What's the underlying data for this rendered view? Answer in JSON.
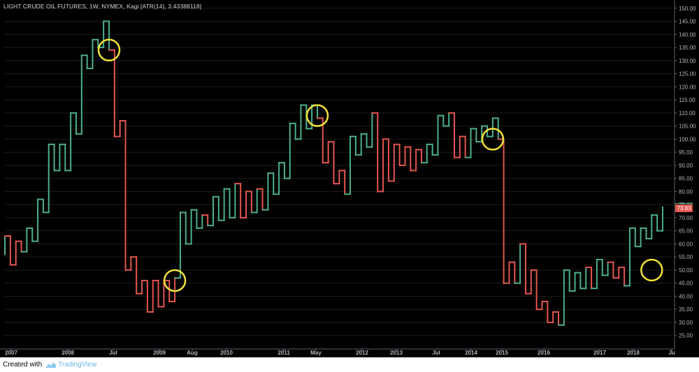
{
  "title": "LIGHT CRUDE OIL FUTURES, 1W, NYMEX, Kagi [ATR(14), 3.43388118]",
  "footer": {
    "created_with": "Created with",
    "brand": "TradingView"
  },
  "last_price_label": "73.83",
  "colors": {
    "up": "#4caf8a",
    "down": "#e3564f",
    "circle": "#f2e23a",
    "background": "#000000",
    "grid": "#1c1c1c"
  },
  "chart_data": {
    "type": "line",
    "style": "kagi",
    "title": "LIGHT CRUDE OIL FUTURES, 1W, NYMEX, Kagi [ATR(14), 3.43388118]",
    "y_range": [
      22,
      151
    ],
    "y_ticks": [
      "25.00",
      "30.00",
      "35.00",
      "40.00",
      "45.00",
      "50.00",
      "55.00",
      "60.00",
      "65.00",
      "70.00",
      "75.00",
      "80.00",
      "85.00",
      "90.00",
      "95.00",
      "100.00",
      "105.00",
      "110.00",
      "115.00",
      "120.00",
      "125.00",
      "130.00",
      "135.00",
      "140.00",
      "145.00",
      "150.00"
    ],
    "x_ticks": [
      "2007",
      "2008",
      "Jul",
      "2009",
      "Aug",
      "2010",
      "2011",
      "May",
      "2012",
      "2013",
      "Jul",
      "2014",
      "2015",
      "2016",
      "2017",
      "2018",
      "Ju"
    ],
    "last_price": 73.83,
    "series": [
      {
        "segments": [
          {
            "y0": 56,
            "y1": 63,
            "trend": "up"
          },
          {
            "y0": 63,
            "y1": 52,
            "trend": "down"
          },
          {
            "y0": 52,
            "y1": 61,
            "trend": "down"
          },
          {
            "y0": 61,
            "y1": 57,
            "trend": "down"
          },
          {
            "y0": 57,
            "y1": 66,
            "trend": "up"
          },
          {
            "y0": 66,
            "y1": 61,
            "trend": "up"
          },
          {
            "y0": 61,
            "y1": 77,
            "trend": "up"
          },
          {
            "y0": 77,
            "y1": 72,
            "trend": "up"
          },
          {
            "y0": 72,
            "y1": 98,
            "trend": "up"
          },
          {
            "y0": 98,
            "y1": 88,
            "trend": "up"
          },
          {
            "y0": 88,
            "y1": 98,
            "trend": "up"
          },
          {
            "y0": 98,
            "y1": 88,
            "trend": "up"
          },
          {
            "y0": 88,
            "y1": 110,
            "trend": "up"
          },
          {
            "y0": 110,
            "y1": 102,
            "trend": "up"
          },
          {
            "y0": 102,
            "y1": 132,
            "trend": "up"
          },
          {
            "y0": 132,
            "y1": 127,
            "trend": "up"
          },
          {
            "y0": 127,
            "y1": 138,
            "trend": "up"
          },
          {
            "y0": 138,
            "y1": 135,
            "trend": "up"
          },
          {
            "y0": 135,
            "y1": 145,
            "trend": "up"
          },
          {
            "y0": 145,
            "y1": 134,
            "trend": "up"
          },
          {
            "y0": 134,
            "y1": 101,
            "trend": "down"
          },
          {
            "y0": 101,
            "y1": 107,
            "trend": "down"
          },
          {
            "y0": 107,
            "y1": 50,
            "trend": "down"
          },
          {
            "y0": 50,
            "y1": 55,
            "trend": "down"
          },
          {
            "y0": 55,
            "y1": 41,
            "trend": "down"
          },
          {
            "y0": 41,
            "y1": 46,
            "trend": "down"
          },
          {
            "y0": 46,
            "y1": 34,
            "trend": "down"
          },
          {
            "y0": 34,
            "y1": 46,
            "trend": "down"
          },
          {
            "y0": 46,
            "y1": 36,
            "trend": "down"
          },
          {
            "y0": 36,
            "y1": 46,
            "trend": "down"
          },
          {
            "y0": 46,
            "y1": 38,
            "trend": "down"
          },
          {
            "y0": 38,
            "y1": 47,
            "trend": "down"
          },
          {
            "y0": 47,
            "y1": 72,
            "trend": "up"
          },
          {
            "y0": 72,
            "y1": 60,
            "trend": "up"
          },
          {
            "y0": 60,
            "y1": 73,
            "trend": "up"
          },
          {
            "y0": 73,
            "y1": 66,
            "trend": "up"
          },
          {
            "y0": 66,
            "y1": 71,
            "trend": "up"
          },
          {
            "y0": 71,
            "y1": 67,
            "trend": "down"
          },
          {
            "y0": 67,
            "y1": 78,
            "trend": "up"
          },
          {
            "y0": 78,
            "y1": 69,
            "trend": "up"
          },
          {
            "y0": 69,
            "y1": 81,
            "trend": "up"
          },
          {
            "y0": 81,
            "y1": 70,
            "trend": "up"
          },
          {
            "y0": 70,
            "y1": 83,
            "trend": "up"
          },
          {
            "y0": 83,
            "y1": 70,
            "trend": "down"
          },
          {
            "y0": 70,
            "y1": 80,
            "trend": "down"
          },
          {
            "y0": 80,
            "y1": 72,
            "trend": "down"
          },
          {
            "y0": 72,
            "y1": 81,
            "trend": "up"
          },
          {
            "y0": 81,
            "y1": 73,
            "trend": "down"
          },
          {
            "y0": 73,
            "y1": 87,
            "trend": "up"
          },
          {
            "y0": 87,
            "y1": 79,
            "trend": "up"
          },
          {
            "y0": 79,
            "y1": 91,
            "trend": "up"
          },
          {
            "y0": 91,
            "y1": 85,
            "trend": "up"
          },
          {
            "y0": 85,
            "y1": 106,
            "trend": "up"
          },
          {
            "y0": 106,
            "y1": 100,
            "trend": "up"
          },
          {
            "y0": 100,
            "y1": 113,
            "trend": "up"
          },
          {
            "y0": 113,
            "y1": 104,
            "trend": "up"
          },
          {
            "y0": 104,
            "y1": 113,
            "trend": "up"
          },
          {
            "y0": 113,
            "y1": 108,
            "trend": "up"
          },
          {
            "y0": 108,
            "y1": 91,
            "trend": "down"
          },
          {
            "y0": 91,
            "y1": 99,
            "trend": "down"
          },
          {
            "y0": 99,
            "y1": 83,
            "trend": "down"
          },
          {
            "y0": 83,
            "y1": 88,
            "trend": "down"
          },
          {
            "y0": 88,
            "y1": 79,
            "trend": "down"
          },
          {
            "y0": 79,
            "y1": 101,
            "trend": "up"
          },
          {
            "y0": 101,
            "y1": 94,
            "trend": "up"
          },
          {
            "y0": 94,
            "y1": 102,
            "trend": "up"
          },
          {
            "y0": 102,
            "y1": 97,
            "trend": "up"
          },
          {
            "y0": 97,
            "y1": 110,
            "trend": "up"
          },
          {
            "y0": 110,
            "y1": 80,
            "trend": "down"
          },
          {
            "y0": 80,
            "y1": 100,
            "trend": "down"
          },
          {
            "y0": 100,
            "y1": 84,
            "trend": "down"
          },
          {
            "y0": 84,
            "y1": 98,
            "trend": "down"
          },
          {
            "y0": 98,
            "y1": 90,
            "trend": "down"
          },
          {
            "y0": 90,
            "y1": 97,
            "trend": "down"
          },
          {
            "y0": 97,
            "y1": 88,
            "trend": "down"
          },
          {
            "y0": 88,
            "y1": 96,
            "trend": "down"
          },
          {
            "y0": 96,
            "y1": 91,
            "trend": "down"
          },
          {
            "y0": 91,
            "y1": 98,
            "trend": "up"
          },
          {
            "y0": 98,
            "y1": 94,
            "trend": "up"
          },
          {
            "y0": 94,
            "y1": 109,
            "trend": "up"
          },
          {
            "y0": 109,
            "y1": 105,
            "trend": "up"
          },
          {
            "y0": 105,
            "y1": 110,
            "trend": "up"
          },
          {
            "y0": 110,
            "y1": 93,
            "trend": "down"
          },
          {
            "y0": 93,
            "y1": 101,
            "trend": "down"
          },
          {
            "y0": 101,
            "y1": 93,
            "trend": "down"
          },
          {
            "y0": 93,
            "y1": 104,
            "trend": "up"
          },
          {
            "y0": 104,
            "y1": 99,
            "trend": "up"
          },
          {
            "y0": 99,
            "y1": 105,
            "trend": "up"
          },
          {
            "y0": 105,
            "y1": 101,
            "trend": "up"
          },
          {
            "y0": 101,
            "y1": 108,
            "trend": "up"
          },
          {
            "y0": 108,
            "y1": 100,
            "trend": "up"
          },
          {
            "y0": 100,
            "y1": 45,
            "trend": "down"
          },
          {
            "y0": 45,
            "y1": 53,
            "trend": "down"
          },
          {
            "y0": 53,
            "y1": 45,
            "trend": "down"
          },
          {
            "y0": 45,
            "y1": 60,
            "trend": "up"
          },
          {
            "y0": 60,
            "y1": 41,
            "trend": "down"
          },
          {
            "y0": 41,
            "y1": 50,
            "trend": "down"
          },
          {
            "y0": 50,
            "y1": 35,
            "trend": "down"
          },
          {
            "y0": 35,
            "y1": 38,
            "trend": "down"
          },
          {
            "y0": 38,
            "y1": 30,
            "trend": "down"
          },
          {
            "y0": 30,
            "y1": 34,
            "trend": "down"
          },
          {
            "y0": 34,
            "y1": 29,
            "trend": "down"
          },
          {
            "y0": 29,
            "y1": 50,
            "trend": "up"
          },
          {
            "y0": 50,
            "y1": 42,
            "trend": "up"
          },
          {
            "y0": 42,
            "y1": 49,
            "trend": "up"
          },
          {
            "y0": 49,
            "y1": 43,
            "trend": "up"
          },
          {
            "y0": 43,
            "y1": 51,
            "trend": "up"
          },
          {
            "y0": 51,
            "y1": 43,
            "trend": "down"
          },
          {
            "y0": 43,
            "y1": 54,
            "trend": "up"
          },
          {
            "y0": 54,
            "y1": 48,
            "trend": "up"
          },
          {
            "y0": 48,
            "y1": 53,
            "trend": "up"
          },
          {
            "y0": 53,
            "y1": 47,
            "trend": "down"
          },
          {
            "y0": 47,
            "y1": 51,
            "trend": "down"
          },
          {
            "y0": 51,
            "y1": 44,
            "trend": "down"
          },
          {
            "y0": 44,
            "y1": 66,
            "trend": "up"
          },
          {
            "y0": 66,
            "y1": 59,
            "trend": "up"
          },
          {
            "y0": 59,
            "y1": 66,
            "trend": "up"
          },
          {
            "y0": 66,
            "y1": 62,
            "trend": "up"
          },
          {
            "y0": 62,
            "y1": 71,
            "trend": "up"
          },
          {
            "y0": 71,
            "y1": 65,
            "trend": "up"
          },
          {
            "y0": 65,
            "y1": 74,
            "trend": "up"
          }
        ]
      }
    ],
    "highlights": [
      {
        "x_index": 19,
        "y": 134
      },
      {
        "x_index": 31,
        "y": 46
      },
      {
        "x_index": 57,
        "y": 109
      },
      {
        "x_index": 89,
        "y": 100
      },
      {
        "x_index": 118,
        "y": 50
      }
    ]
  }
}
